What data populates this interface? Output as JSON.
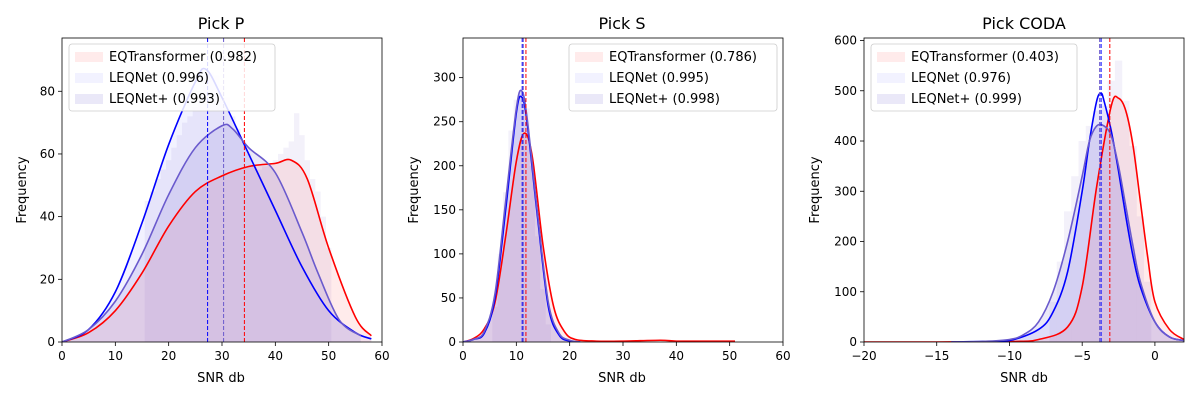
{
  "chart_data": [
    {
      "type": "area",
      "title": "Pick P",
      "xlabel": "SNR db",
      "ylabel": "Frequency",
      "xlim": [
        0,
        60
      ],
      "ylim": [
        0,
        97
      ],
      "xticks": [
        0,
        10,
        20,
        30,
        40,
        50,
        60
      ],
      "yticks": [
        0,
        20,
        40,
        60,
        80
      ],
      "legend_position": "top-left",
      "grid": false,
      "series": [
        {
          "name": "EQTransformer (0.982)",
          "color": "#ff0000",
          "curve": {
            "x": [
              0,
              5,
              10,
              15,
              20,
              25,
              30,
              35,
              40,
              43,
              46,
              50,
              55,
              58
            ],
            "y": [
              0,
              3,
              10,
              22,
              37,
              48,
              53,
              56,
              57,
              58,
              52,
              30,
              8,
              2
            ]
          },
          "median": 34.2
        },
        {
          "name": "LEQNet (0.996)",
          "color": "#0000ff",
          "curve": {
            "x": [
              0,
              5,
              10,
              15,
              20,
              25,
              27,
              30,
              35,
              40,
              45,
              50,
              55,
              58
            ],
            "y": [
              0,
              4,
              16,
              38,
              63,
              83,
              87,
              78,
              60,
              42,
              24,
              10,
              3,
              1
            ]
          },
          "median": 27.3
        },
        {
          "name": "LEQNet+ (0.993)",
          "color": "#6a5acd",
          "curve": {
            "x": [
              0,
              5,
              10,
              15,
              20,
              25,
              30,
              32,
              35,
              40,
              45,
              48,
              52,
              56
            ],
            "y": [
              0,
              4,
              13,
              28,
              47,
              62,
              69,
              68,
              62,
              54,
              35,
              22,
              7,
              2
            ]
          },
          "median": 30.3
        }
      ],
      "histogram": {
        "bins": [
          16,
          17,
          18,
          19,
          20,
          21,
          22,
          23,
          24,
          25,
          26,
          27,
          28,
          29,
          30,
          31,
          32,
          33,
          34,
          35,
          36,
          37,
          38,
          39,
          40,
          41,
          42,
          43,
          44,
          45,
          46,
          47,
          48,
          49,
          50
        ],
        "values": [
          45,
          48,
          52,
          55,
          58,
          62,
          66,
          70,
          72,
          75,
          80,
          84,
          86,
          85,
          82,
          78,
          72,
          68,
          64,
          60,
          56,
          55,
          56,
          57,
          58,
          60,
          62,
          64,
          73,
          66,
          58,
          52,
          48,
          40,
          30
        ]
      }
    },
    {
      "type": "area",
      "title": "Pick S",
      "xlabel": "SNR db",
      "ylabel": "Frequency",
      "xlim": [
        0,
        60
      ],
      "ylim": [
        0,
        345
      ],
      "xticks": [
        0,
        10,
        20,
        30,
        40,
        50,
        60
      ],
      "yticks": [
        0,
        50,
        100,
        150,
        200,
        250,
        300
      ],
      "legend_position": "top-right",
      "grid": false,
      "series": [
        {
          "name": "EQTransformer (0.786)",
          "color": "#ff0000",
          "curve": {
            "x": [
              0,
              2,
              4,
              6,
              8,
              10,
              11.5,
              13,
              15,
              17,
              19,
              21,
              25,
              30,
              37,
              40,
              45,
              51
            ],
            "y": [
              0,
              4,
              15,
              45,
              120,
              205,
              237,
              210,
              110,
              40,
              12,
              3,
              1,
              1,
              2,
              1,
              1,
              1
            ]
          },
          "median": 11.8
        },
        {
          "name": "LEQNet (0.995)",
          "color": "#0000ff",
          "curve": {
            "x": [
              0,
              2,
              4,
              6,
              8,
              10,
              11,
              12,
              14,
              16,
              18,
              20,
              22
            ],
            "y": [
              0,
              3,
              10,
              50,
              150,
              260,
              278,
              250,
              140,
              40,
              8,
              1,
              0
            ]
          },
          "median": 11.1
        },
        {
          "name": "LEQNet+ (0.998)",
          "color": "#6a5acd",
          "curve": {
            "x": [
              0,
              2,
              4,
              6,
              8,
              10,
              11,
              12,
              14,
              16,
              18,
              20,
              22
            ],
            "y": [
              0,
              3,
              12,
              55,
              160,
              265,
              285,
              255,
              145,
              45,
              10,
              2,
              0
            ]
          },
          "median": 11.3
        }
      ],
      "histogram": {
        "bins": [
          6,
          7,
          8,
          9,
          10,
          11,
          12,
          13,
          14,
          15,
          16
        ],
        "values": [
          40,
          100,
          170,
          240,
          275,
          285,
          265,
          200,
          120,
          60,
          20
        ]
      }
    },
    {
      "type": "area",
      "title": "Pick CODA",
      "xlabel": "SNR db",
      "ylabel": "Frequency",
      "xlim": [
        -20,
        2
      ],
      "ylim": [
        0,
        605
      ],
      "xticks": [
        -20,
        -15,
        -10,
        -5,
        0
      ],
      "yticks": [
        0,
        100,
        200,
        300,
        400,
        500,
        600
      ],
      "legend_position": "top-left",
      "grid": false,
      "series": [
        {
          "name": "EQTransformer (0.403)",
          "color": "#ff0000",
          "curve": {
            "x": [
              -20,
              -15,
              -10,
              -8,
              -6,
              -5,
              -4,
              -3,
              -2.5,
              -2,
              -1.5,
              -1,
              -0.5,
              0,
              1,
              2
            ],
            "y": [
              0,
              0,
              1,
              5,
              30,
              110,
              310,
              470,
              485,
              460,
              390,
              280,
              170,
              80,
              25,
              5
            ]
          },
          "median": -3.1
        },
        {
          "name": "LEQNet (0.976)",
          "color": "#0000ff",
          "curve": {
            "x": [
              -14,
              -12,
              -10,
              -8,
              -7,
              -6,
              -5,
              -4.5,
              -4,
              -3.7,
              -3.5,
              -3,
              -2.5,
              -2,
              -1.5,
              -1,
              0,
              1,
              2
            ],
            "y": [
              0,
              1,
              3,
              25,
              60,
              140,
              300,
              400,
              480,
              495,
              480,
              420,
              340,
              250,
              170,
              110,
              40,
              10,
              3
            ]
          },
          "median": -3.7
        },
        {
          "name": "LEQNet+ (0.999)",
          "color": "#6a5acd",
          "curve": {
            "x": [
              -14,
              -12,
              -10,
              -9,
              -8,
              -7,
              -6,
              -5,
              -4.5,
              -4,
              -3.5,
              -3,
              -2.5,
              -2,
              -1.5,
              -1,
              0,
              1,
              2
            ],
            "y": [
              0,
              1,
              5,
              15,
              40,
              100,
              200,
              330,
              400,
              430,
              430,
              410,
              350,
              270,
              190,
              120,
              40,
              10,
              3
            ]
          },
          "median": -3.8
        }
      ],
      "histogram": {
        "bins": [
          -7,
          -6.5,
          -6,
          -5.5,
          -5,
          -4.5,
          -4,
          -3.5,
          -3,
          -2.5,
          -2,
          -1.5,
          -1,
          -0.5
        ],
        "values": [
          80,
          160,
          260,
          330,
          400,
          430,
          460,
          470,
          520,
          560,
          480,
          390,
          250,
          120
        ]
      }
    }
  ]
}
